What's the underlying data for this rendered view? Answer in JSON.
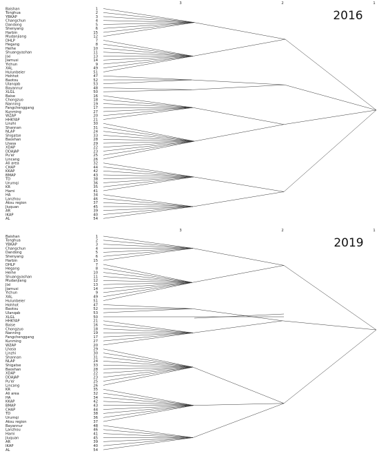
{
  "level_labels": [
    "3",
    "2",
    "1"
  ],
  "dendrograms": [
    {
      "year": "2016",
      "leaves": [
        [
          "Baishan",
          "1"
        ],
        [
          "Tonghua",
          "2"
        ],
        [
          "YBKAP",
          "3"
        ],
        [
          "Changchun",
          "4"
        ],
        [
          "Dandong",
          "5"
        ],
        [
          "Shenyang",
          "6"
        ],
        [
          "Harbin",
          "15"
        ],
        [
          "Mudanjiang",
          "12"
        ],
        [
          "DHLP",
          "7"
        ],
        [
          "Hegang",
          "8"
        ],
        [
          "Heihe",
          "10"
        ],
        [
          "Shuangyashan",
          "11"
        ],
        [
          "Jixi",
          "13"
        ],
        [
          "Jiamusi",
          "14"
        ],
        [
          "Yichun",
          "9"
        ],
        [
          "XAL",
          "49"
        ],
        [
          "Hulunbeier",
          "51"
        ],
        [
          "Hohhot",
          "47"
        ],
        [
          "Baotou",
          "52"
        ],
        [
          "Ulanqab",
          "53"
        ],
        [
          "Bayannur",
          "48"
        ],
        [
          "XLGL",
          "50"
        ],
        [
          "Baise",
          "16"
        ],
        [
          "Chongzuo",
          "18"
        ],
        [
          "Nanning",
          "19"
        ],
        [
          "Fangchenggang",
          "17"
        ],
        [
          "Kunming",
          "27"
        ],
        [
          "WZAP",
          "20"
        ],
        [
          "HHKYAP",
          "21"
        ],
        [
          "Linzhi",
          "30"
        ],
        [
          "Shannan",
          "31"
        ],
        [
          "NLAP",
          "24"
        ],
        [
          "Shigatse",
          "33"
        ],
        [
          "Baoshan",
          "28"
        ],
        [
          "Lhasa",
          "29"
        ],
        [
          "XDAP",
          "22"
        ],
        [
          "DDAJAP",
          "23"
        ],
        [
          "Pu'er",
          "25"
        ],
        [
          "Lincang",
          "26"
        ],
        [
          "Ali area",
          "32"
        ],
        [
          "CHAP",
          "44"
        ],
        [
          "KKAP",
          "42"
        ],
        [
          "BMAP",
          "43"
        ],
        [
          "TD",
          "38"
        ],
        [
          "Urumqi",
          "36"
        ],
        [
          "KR",
          "35"
        ],
        [
          "Hami",
          "41"
        ],
        [
          "HA",
          "34"
        ],
        [
          "Lanzhou",
          "46"
        ],
        [
          "Aksu region",
          "37"
        ],
        [
          "Jiuquan",
          "45"
        ],
        [
          "AR",
          "39"
        ],
        [
          "IKAP",
          "40"
        ],
        [
          "AL",
          "54"
        ]
      ]
    },
    {
      "year": "2019",
      "leaves": [
        [
          "Baishan",
          "1"
        ],
        [
          "Tonghua",
          "2"
        ],
        [
          "YBKAP",
          "3"
        ],
        [
          "Changchun",
          "4"
        ],
        [
          "Dandong",
          "5"
        ],
        [
          "Shenyang",
          "6"
        ],
        [
          "Harbin",
          "15"
        ],
        [
          "DHLP",
          "7"
        ],
        [
          "Hegang",
          "8"
        ],
        [
          "Heihe",
          "10"
        ],
        [
          "Shuangyashan",
          "11"
        ],
        [
          "Mudanjiang",
          "12"
        ],
        [
          "Jixi",
          "13"
        ],
        [
          "Jiamusi",
          "14"
        ],
        [
          "Yichun",
          "9"
        ],
        [
          "XAL",
          "49"
        ],
        [
          "Hulunbeier",
          "51"
        ],
        [
          "Hohhot",
          "47"
        ],
        [
          "Baotou",
          "52"
        ],
        [
          "Ulanqab",
          "53"
        ],
        [
          "XLGL",
          "50"
        ],
        [
          "HHKYAP",
          "21"
        ],
        [
          "Baise",
          "16"
        ],
        [
          "Chongzuo",
          "18"
        ],
        [
          "Nanning",
          "19"
        ],
        [
          "Fangchenggang",
          "17"
        ],
        [
          "Kunming",
          "27"
        ],
        [
          "WZAP",
          "20"
        ],
        [
          "Lhasa",
          "29"
        ],
        [
          "Linzhi",
          "30"
        ],
        [
          "Shannan",
          "31"
        ],
        [
          "NLAP",
          "24"
        ],
        [
          "Shigatse",
          "33"
        ],
        [
          "Baoshan",
          "28"
        ],
        [
          "XDAP",
          "22"
        ],
        [
          "DDAJAP",
          "23"
        ],
        [
          "Pu'er",
          "25"
        ],
        [
          "Lincang",
          "26"
        ],
        [
          "KR",
          "35"
        ],
        [
          "Ali area",
          "32"
        ],
        [
          "HA",
          "34"
        ],
        [
          "KKAP",
          "42"
        ],
        [
          "BMAP",
          "43"
        ],
        [
          "CHAP",
          "44"
        ],
        [
          "TD",
          "38"
        ],
        [
          "Urumqi",
          "36"
        ],
        [
          "Aksu region",
          "37"
        ],
        [
          "Bayannur",
          "48"
        ],
        [
          "Lanzhou",
          "46"
        ],
        [
          "Hami",
          "41"
        ],
        [
          "Jiuquan",
          "45"
        ],
        [
          "AR",
          "39"
        ],
        [
          "IKAP",
          "40"
        ],
        [
          "AL",
          "54"
        ]
      ]
    }
  ]
}
